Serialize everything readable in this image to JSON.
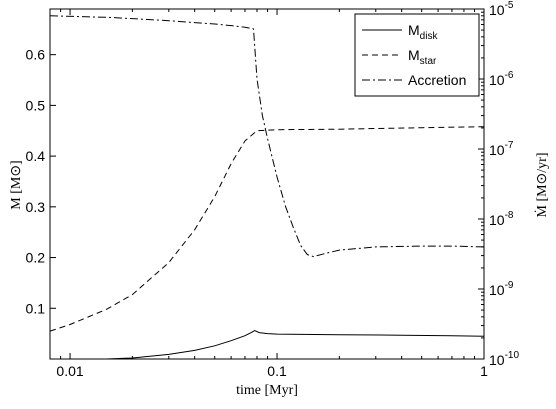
{
  "chart_data": {
    "type": "line",
    "xscale": "log",
    "xlim": [
      0.008,
      1
    ],
    "xticks": [
      0.01,
      0.1,
      1
    ],
    "xtick_labels": [
      "0.01",
      "0.1",
      "1"
    ],
    "xlabel": "time [Myr]",
    "y_left": {
      "label_main": "M [M",
      "label_symbol": "⊙",
      "label_end": "]",
      "lim": [
        0,
        0.69
      ],
      "ticks": [
        0.1,
        0.2,
        0.3,
        0.4,
        0.5,
        0.6
      ],
      "tick_labels": [
        "0.1",
        "0.2",
        "0.3",
        "0.4",
        "0.5",
        "0.6"
      ]
    },
    "y_right": {
      "scale": "log",
      "label_main": "Ṁ [M",
      "label_symbol": "⊙",
      "label_end": "/yr]",
      "lim": [
        1e-10,
        1e-05
      ],
      "ticks": [
        1e-10,
        1e-09,
        1e-08,
        1e-07,
        1e-06,
        1e-05
      ],
      "tick_exponents": [
        "-10",
        "-9",
        "-8",
        "-7",
        "-6",
        "-5"
      ],
      "tick_base": "10"
    },
    "legend_position": "top-right",
    "series": [
      {
        "name": "M",
        "name_sub": "disk",
        "axis": "left",
        "style": "solid",
        "x": [
          0.008,
          0.015,
          0.02,
          0.03,
          0.04,
          0.05,
          0.06,
          0.07,
          0.075,
          0.078,
          0.082,
          0.09,
          0.1,
          0.2,
          0.4,
          0.7,
          1.0
        ],
        "y": [
          0.0,
          0.0,
          0.002,
          0.009,
          0.017,
          0.026,
          0.036,
          0.046,
          0.052,
          0.056,
          0.052,
          0.05,
          0.049,
          0.048,
          0.047,
          0.046,
          0.045
        ]
      },
      {
        "name": "M",
        "name_sub": "star",
        "axis": "left",
        "style": "dashed",
        "x": [
          0.008,
          0.01,
          0.015,
          0.02,
          0.03,
          0.04,
          0.05,
          0.06,
          0.07,
          0.08,
          0.09,
          0.1,
          0.2,
          0.5,
          1.0
        ],
        "y": [
          0.055,
          0.068,
          0.098,
          0.127,
          0.19,
          0.255,
          0.32,
          0.385,
          0.43,
          0.45,
          0.451,
          0.452,
          0.453,
          0.456,
          0.458
        ]
      },
      {
        "name": "Accretion",
        "axis": "right",
        "style": "dashdot",
        "x": [
          0.008,
          0.015,
          0.02,
          0.03,
          0.04,
          0.05,
          0.06,
          0.07,
          0.077,
          0.08,
          0.085,
          0.09,
          0.1,
          0.11,
          0.12,
          0.13,
          0.14,
          0.15,
          0.17,
          0.2,
          0.3,
          0.5,
          0.7,
          1.0
        ],
        "y": [
          8e-06,
          7.6e-06,
          7.3e-06,
          6.8e-06,
          6.4e-06,
          6.1e-06,
          5.8e-06,
          5.5e-06,
          5.2e-06,
          1e-06,
          3e-07,
          1.4e-07,
          4e-08,
          1.5e-08,
          7.5e-09,
          4.2e-09,
          3.1e-09,
          2.9e-09,
          3.2e-09,
          3.6e-09,
          4e-09,
          4.1e-09,
          4.1e-09,
          4e-09
        ]
      }
    ]
  }
}
